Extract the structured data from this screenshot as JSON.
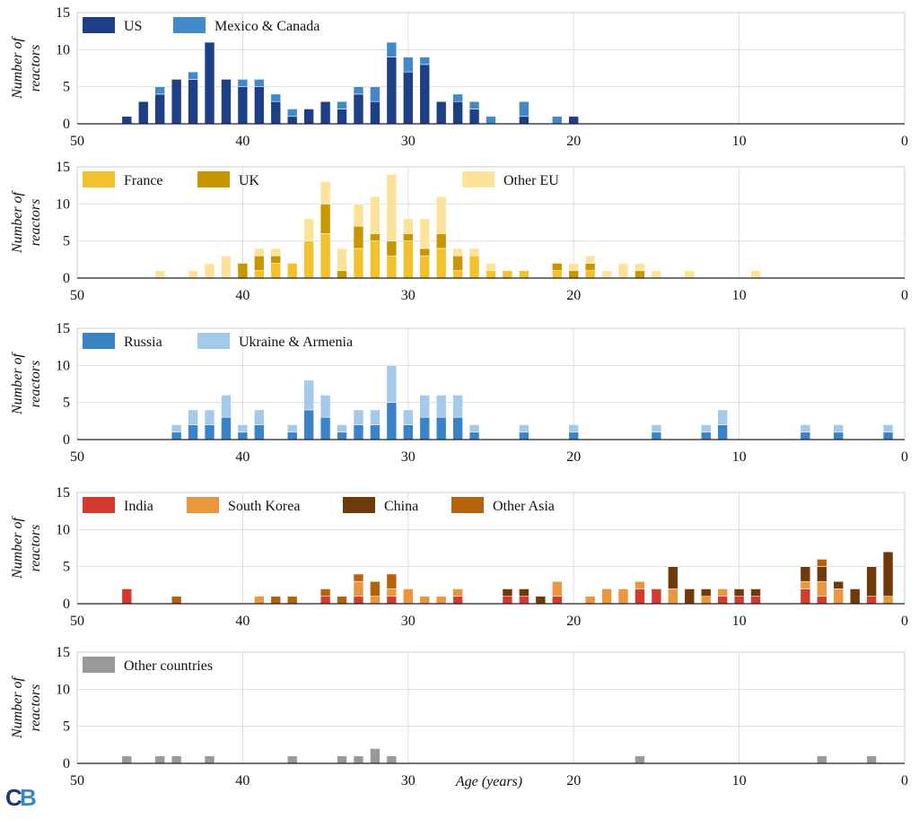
{
  "chart_data": [
    {
      "type": "bar",
      "stacked": true,
      "ylabel": "Number of reactors",
      "xlabel": "",
      "xlim": [
        50,
        0
      ],
      "ylim": [
        0,
        15
      ],
      "xticks": [
        50,
        40,
        30,
        20,
        10,
        0
      ],
      "yticks": [
        0,
        5,
        10,
        15
      ],
      "grid": true,
      "legend_position": "top-left",
      "series": [
        {
          "name": "US",
          "color": "#1c3f85",
          "points": [
            [
              47,
              1
            ],
            [
              46,
              3
            ],
            [
              45,
              4
            ],
            [
              44,
              6
            ],
            [
              43,
              6
            ],
            [
              42,
              11
            ],
            [
              41,
              6
            ],
            [
              40,
              5
            ],
            [
              39,
              5
            ],
            [
              38,
              3
            ],
            [
              37,
              1
            ],
            [
              36,
              2
            ],
            [
              35,
              3
            ],
            [
              34,
              2
            ],
            [
              33,
              4
            ],
            [
              32,
              3
            ],
            [
              31,
              9
            ],
            [
              30,
              7
            ],
            [
              29,
              8
            ],
            [
              28,
              3
            ],
            [
              27,
              3
            ],
            [
              26,
              2
            ],
            [
              23,
              1
            ],
            [
              20,
              1
            ]
          ]
        },
        {
          "name": "Mexico & Canada",
          "color": "#4189c8",
          "points": [
            [
              45,
              1
            ],
            [
              43,
              1
            ],
            [
              40,
              1
            ],
            [
              39,
              1
            ],
            [
              38,
              1
            ],
            [
              37,
              1
            ],
            [
              34,
              1
            ],
            [
              33,
              1
            ],
            [
              32,
              2
            ],
            [
              31,
              2
            ],
            [
              30,
              2
            ],
            [
              29,
              1
            ],
            [
              27,
              1
            ],
            [
              26,
              1
            ],
            [
              25,
              1
            ],
            [
              23,
              2
            ],
            [
              21,
              1
            ]
          ]
        }
      ]
    },
    {
      "type": "bar",
      "stacked": true,
      "ylabel": "Number of reactors",
      "xlabel": "",
      "xlim": [
        50,
        0
      ],
      "ylim": [
        0,
        15
      ],
      "xticks": [
        50,
        40,
        30,
        20,
        10,
        0
      ],
      "yticks": [
        0,
        5,
        10,
        15
      ],
      "grid": true,
      "legend_position": "top",
      "series": [
        {
          "name": "France",
          "color": "#f2c12e",
          "points": [
            [
              39,
              1
            ],
            [
              38,
              2
            ],
            [
              37,
              2
            ],
            [
              36,
              5
            ],
            [
              35,
              6
            ],
            [
              33,
              4
            ],
            [
              32,
              5
            ],
            [
              31,
              3
            ],
            [
              30,
              5
            ],
            [
              29,
              3
            ],
            [
              28,
              4
            ],
            [
              27,
              1
            ],
            [
              26,
              3
            ],
            [
              25,
              1
            ],
            [
              24,
              1
            ],
            [
              23,
              1
            ],
            [
              21,
              1
            ],
            [
              19,
              1
            ]
          ]
        },
        {
          "name": "UK",
          "color": "#c99600",
          "points": [
            [
              40,
              2
            ],
            [
              39,
              2
            ],
            [
              38,
              1
            ],
            [
              35,
              4
            ],
            [
              34,
              1
            ],
            [
              33,
              3
            ],
            [
              32,
              1
            ],
            [
              31,
              2
            ],
            [
              30,
              1
            ],
            [
              29,
              1
            ],
            [
              28,
              2
            ],
            [
              27,
              2
            ],
            [
              21,
              1
            ],
            [
              20,
              1
            ],
            [
              19,
              1
            ],
            [
              16,
              1
            ]
          ]
        },
        {
          "name": "Other EU",
          "color": "#fce399",
          "points": [
            [
              45,
              1
            ],
            [
              43,
              1
            ],
            [
              42,
              2
            ],
            [
              41,
              3
            ],
            [
              39,
              1
            ],
            [
              38,
              1
            ],
            [
              36,
              3
            ],
            [
              35,
              3
            ],
            [
              34,
              3
            ],
            [
              33,
              3
            ],
            [
              32,
              5
            ],
            [
              31,
              9
            ],
            [
              30,
              2
            ],
            [
              29,
              4
            ],
            [
              28,
              5
            ],
            [
              27,
              1
            ],
            [
              26,
              1
            ],
            [
              25,
              1
            ],
            [
              20,
              1
            ],
            [
              19,
              1
            ],
            [
              18,
              1
            ],
            [
              17,
              2
            ],
            [
              16,
              1
            ],
            [
              15,
              1
            ],
            [
              13,
              1
            ],
            [
              9,
              1
            ]
          ]
        }
      ]
    },
    {
      "type": "bar",
      "stacked": true,
      "ylabel": "Number of reactors",
      "xlabel": "",
      "xlim": [
        50,
        0
      ],
      "ylim": [
        0,
        15
      ],
      "xticks": [
        50,
        40,
        30,
        20,
        10,
        0
      ],
      "yticks": [
        0,
        5,
        10,
        15
      ],
      "grid": true,
      "legend_position": "top-left",
      "series": [
        {
          "name": "Russia",
          "color": "#3a83c6",
          "points": [
            [
              44,
              1
            ],
            [
              43,
              2
            ],
            [
              42,
              2
            ],
            [
              41,
              3
            ],
            [
              40,
              1
            ],
            [
              39,
              2
            ],
            [
              37,
              1
            ],
            [
              36,
              4
            ],
            [
              35,
              3
            ],
            [
              34,
              1
            ],
            [
              33,
              2
            ],
            [
              32,
              2
            ],
            [
              31,
              5
            ],
            [
              30,
              2
            ],
            [
              29,
              3
            ],
            [
              28,
              3
            ],
            [
              27,
              3
            ],
            [
              26,
              1
            ],
            [
              23,
              1
            ],
            [
              20,
              1
            ],
            [
              15,
              1
            ],
            [
              12,
              1
            ],
            [
              11,
              2
            ],
            [
              6,
              1
            ],
            [
              4,
              1
            ],
            [
              1,
              1
            ]
          ]
        },
        {
          "name": "Ukraine & Armenia",
          "color": "#a4c9ea",
          "points": [
            [
              44,
              1
            ],
            [
              43,
              2
            ],
            [
              42,
              2
            ],
            [
              41,
              3
            ],
            [
              40,
              1
            ],
            [
              39,
              2
            ],
            [
              37,
              1
            ],
            [
              36,
              4
            ],
            [
              35,
              3
            ],
            [
              34,
              1
            ],
            [
              33,
              2
            ],
            [
              32,
              2
            ],
            [
              31,
              5
            ],
            [
              30,
              2
            ],
            [
              29,
              3
            ],
            [
              28,
              3
            ],
            [
              27,
              3
            ],
            [
              26,
              1
            ],
            [
              23,
              1
            ],
            [
              20,
              1
            ],
            [
              15,
              1
            ],
            [
              12,
              1
            ],
            [
              11,
              2
            ],
            [
              6,
              1
            ],
            [
              4,
              1
            ],
            [
              1,
              1
            ]
          ]
        }
      ]
    },
    {
      "type": "bar",
      "stacked": true,
      "ylabel": "Number of reactors",
      "xlabel": "",
      "xlim": [
        50,
        0
      ],
      "ylim": [
        0,
        15
      ],
      "xticks": [
        50,
        40,
        30,
        20,
        10,
        0
      ],
      "yticks": [
        0,
        5,
        10,
        15
      ],
      "grid": true,
      "legend_position": "top-left",
      "series": [
        {
          "name": "India",
          "color": "#d33b2c",
          "points": [
            [
              47,
              2
            ],
            [
              35,
              1
            ],
            [
              33,
              1
            ],
            [
              31,
              1
            ],
            [
              27,
              1
            ],
            [
              24,
              1
            ],
            [
              23,
              1
            ],
            [
              21,
              1
            ],
            [
              16,
              2
            ],
            [
              15,
              2
            ],
            [
              11,
              1
            ],
            [
              10,
              1
            ],
            [
              9,
              1
            ],
            [
              6,
              2
            ],
            [
              5,
              1
            ],
            [
              2,
              1
            ]
          ]
        },
        {
          "name": "South Korea",
          "color": "#ea963f",
          "points": [
            [
              39,
              1
            ],
            [
              33,
              2
            ],
            [
              32,
              1
            ],
            [
              31,
              1
            ],
            [
              30,
              2
            ],
            [
              29,
              1
            ],
            [
              28,
              1
            ],
            [
              27,
              1
            ],
            [
              21,
              2
            ],
            [
              19,
              1
            ],
            [
              18,
              2
            ],
            [
              17,
              2
            ],
            [
              16,
              1
            ],
            [
              14,
              2
            ],
            [
              12,
              1
            ],
            [
              11,
              1
            ],
            [
              6,
              1
            ],
            [
              5,
              2
            ],
            [
              4,
              2
            ],
            [
              1,
              1
            ]
          ]
        },
        {
          "name": "China",
          "color": "#6f3a0a",
          "points": [
            [
              24,
              1
            ],
            [
              23,
              1
            ],
            [
              22,
              1
            ],
            [
              17,
              0
            ],
            [
              14,
              3
            ],
            [
              13,
              2
            ],
            [
              12,
              1
            ],
            [
              10,
              1
            ],
            [
              9,
              1
            ],
            [
              6,
              2
            ],
            [
              5,
              2
            ],
            [
              4,
              1
            ],
            [
              3,
              2
            ],
            [
              2,
              4
            ],
            [
              1,
              6
            ]
          ]
        },
        {
          "name": "Other Asia",
          "color": "#b5620f",
          "points": [
            [
              44,
              1
            ],
            [
              38,
              1
            ],
            [
              37,
              1
            ],
            [
              35,
              1
            ],
            [
              34,
              1
            ],
            [
              33,
              1
            ],
            [
              32,
              2
            ],
            [
              31,
              2
            ],
            [
              5,
              1
            ],
            [
              2,
              0
            ]
          ]
        }
      ]
    },
    {
      "type": "bar",
      "stacked": true,
      "ylabel": "Number of reactors",
      "xlabel": "Age (years)",
      "xlim": [
        50,
        0
      ],
      "ylim": [
        0,
        15
      ],
      "xticks": [
        50,
        40,
        30,
        20,
        10,
        0
      ],
      "yticks": [
        0,
        5,
        10,
        15
      ],
      "grid": true,
      "legend_position": "top-left",
      "series": [
        {
          "name": "Other countries",
          "color": "#999999",
          "points": [
            [
              47,
              1
            ],
            [
              45,
              1
            ],
            [
              44,
              1
            ],
            [
              42,
              1
            ],
            [
              37,
              1
            ],
            [
              34,
              1
            ],
            [
              33,
              1
            ],
            [
              32,
              2
            ],
            [
              31,
              1
            ],
            [
              16,
              1
            ],
            [
              5,
              1
            ],
            [
              2,
              1
            ]
          ]
        }
      ]
    }
  ],
  "ylabel_lines": [
    "Number of",
    "reactors"
  ],
  "logo": {
    "text_c": "C",
    "text_b": "B"
  }
}
